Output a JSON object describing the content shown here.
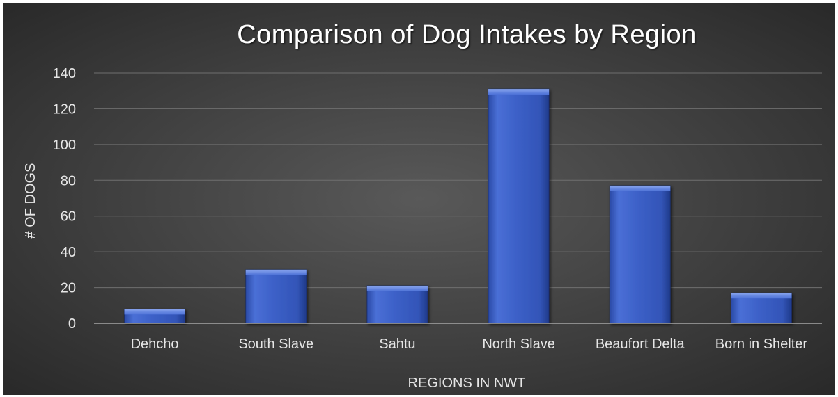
{
  "chart_data": {
    "type": "bar",
    "title": "Comparison of Dog Intakes by Region",
    "xlabel": "REGIONS IN NWT",
    "ylabel": "# OF DOGS",
    "categories": [
      "Dehcho",
      "South Slave",
      "Sahtu",
      "North Slave",
      "Beaufort Delta",
      "Born in Shelter"
    ],
    "values": [
      8,
      30,
      21,
      131,
      77,
      17
    ],
    "ylim": [
      0,
      140
    ],
    "yticks": [
      "0",
      "20",
      "40",
      "60",
      "80",
      "100",
      "120",
      "140"
    ],
    "grid": true,
    "legend": "none",
    "colors": {
      "background_center": "#595959",
      "background_edge": "#262626",
      "bar_fill": "#3B5FC6",
      "bar_highlight": "#6E8FE6",
      "bar_shadow": "#233D8C",
      "gridline": "#6f6f6f",
      "axis_line": "#a6a6a6",
      "text": "#e6e6e6"
    }
  }
}
